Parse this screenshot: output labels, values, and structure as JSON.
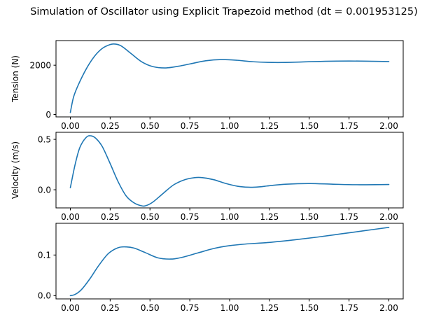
{
  "figure": {
    "title": "Simulation of Oscillator using Explicit Trapezoid method (dt = 0.001953125)",
    "line_color": "#1f77b4"
  },
  "chart_data": [
    {
      "type": "line",
      "ylabel": "Tension (N)",
      "xlim": [
        -0.09,
        2.09
      ],
      "ylim": [
        -100,
        3000
      ],
      "xticks": [
        0.0,
        0.25,
        0.5,
        0.75,
        1.0,
        1.25,
        1.5,
        1.75,
        2.0
      ],
      "xtick_labels": [
        "0.00",
        "0.25",
        "0.50",
        "0.75",
        "1.00",
        "1.25",
        "1.50",
        "1.75",
        "2.00"
      ],
      "yticks": [
        0,
        2000
      ],
      "ytick_labels": [
        "0",
        "2000"
      ],
      "grid": false,
      "x": [
        0,
        0.02,
        0.05,
        0.1,
        0.15,
        0.2,
        0.25,
        0.28,
        0.32,
        0.38,
        0.45,
        0.52,
        0.6,
        0.68,
        0.75,
        0.85,
        0.95,
        1.05,
        1.15,
        1.3,
        1.45,
        1.6,
        1.75,
        1.9,
        2.0
      ],
      "y": [
        80,
        700,
        1200,
        1850,
        2350,
        2680,
        2840,
        2860,
        2780,
        2480,
        2130,
        1940,
        1890,
        1960,
        2050,
        2180,
        2230,
        2200,
        2140,
        2110,
        2130,
        2160,
        2170,
        2160,
        2150
      ]
    },
    {
      "type": "line",
      "ylabel": "Velocity (m/s)",
      "xlim": [
        -0.09,
        2.09
      ],
      "ylim": [
        -0.18,
        0.57
      ],
      "xticks": [
        0.0,
        0.25,
        0.5,
        0.75,
        1.0,
        1.25,
        1.5,
        1.75,
        2.0
      ],
      "xtick_labels": [
        "0.00",
        "0.25",
        "0.50",
        "0.75",
        "1.00",
        "1.25",
        "1.50",
        "1.75",
        "2.00"
      ],
      "yticks": [
        0.0,
        0.5
      ],
      "ytick_labels": [
        "0.0",
        "0.5"
      ],
      "grid": false,
      "x": [
        0,
        0.03,
        0.06,
        0.1,
        0.13,
        0.16,
        0.2,
        0.25,
        0.3,
        0.35,
        0.4,
        0.45,
        0.48,
        0.52,
        0.58,
        0.65,
        0.72,
        0.78,
        0.83,
        0.9,
        0.97,
        1.05,
        1.12,
        1.18,
        1.25,
        1.35,
        1.5,
        1.65,
        1.8,
        2.0
      ],
      "y": [
        0.02,
        0.25,
        0.42,
        0.52,
        0.535,
        0.51,
        0.43,
        0.26,
        0.08,
        -0.06,
        -0.13,
        -0.16,
        -0.155,
        -0.12,
        -0.04,
        0.05,
        0.1,
        0.12,
        0.12,
        0.1,
        0.065,
        0.035,
        0.025,
        0.028,
        0.04,
        0.055,
        0.062,
        0.055,
        0.05,
        0.052
      ]
    },
    {
      "type": "line",
      "ylabel": "",
      "xlim": [
        -0.09,
        2.09
      ],
      "ylim": [
        -0.008,
        0.178
      ],
      "xticks": [
        0.0,
        0.25,
        0.5,
        0.75,
        1.0,
        1.25,
        1.5,
        1.75,
        2.0
      ],
      "xtick_labels": [
        "0.00",
        "0.25",
        "0.50",
        "0.75",
        "1.00",
        "1.25",
        "1.50",
        "1.75",
        "2.00"
      ],
      "yticks": [
        0.0,
        0.1
      ],
      "ytick_labels": [
        "0.0",
        "0.1"
      ],
      "grid": false,
      "x": [
        0,
        0.03,
        0.07,
        0.12,
        0.18,
        0.24,
        0.3,
        0.35,
        0.4,
        0.47,
        0.55,
        0.63,
        0.7,
        0.8,
        0.9,
        1.0,
        1.1,
        1.25,
        1.4,
        1.55,
        1.7,
        1.85,
        2.0
      ],
      "y": [
        0.0,
        0.003,
        0.015,
        0.04,
        0.075,
        0.104,
        0.118,
        0.12,
        0.117,
        0.106,
        0.093,
        0.09,
        0.094,
        0.105,
        0.116,
        0.123,
        0.127,
        0.131,
        0.137,
        0.144,
        0.152,
        0.16,
        0.168
      ]
    }
  ]
}
